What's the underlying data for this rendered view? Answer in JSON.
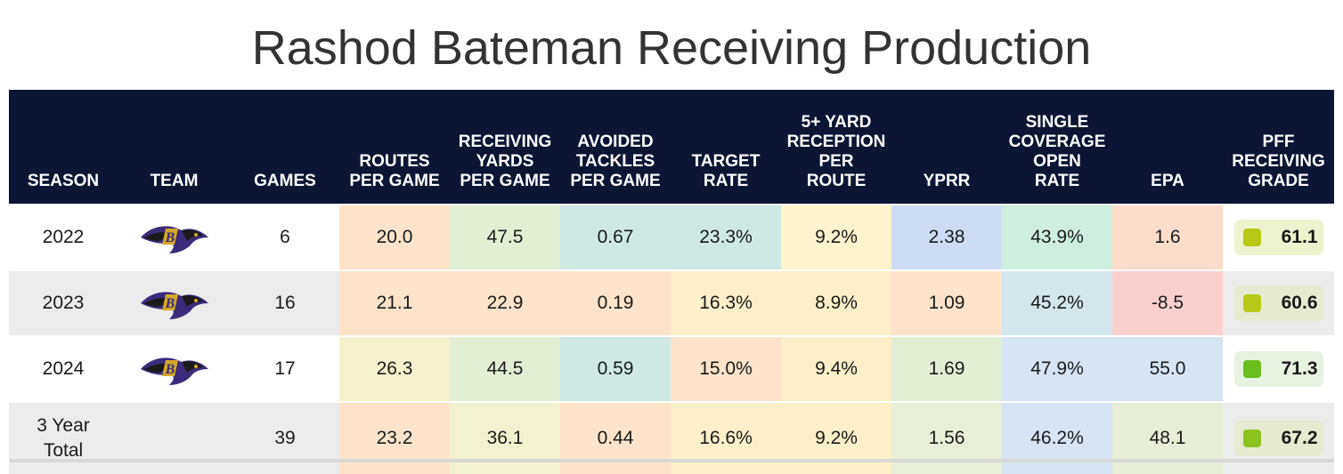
{
  "title": "Rashod Bateman Receiving Production",
  "headers": {
    "season": "SEASON",
    "team": "TEAM",
    "games": "GAMES",
    "routes": [
      "ROUTES",
      "PER GAME"
    ],
    "yards": [
      "RECEIVING",
      "YARDS",
      "PER GAME"
    ],
    "avoided": [
      "AVOIDED",
      "TACKLES",
      "PER GAME"
    ],
    "target": [
      "TARGET",
      "RATE"
    ],
    "fiveplus": [
      "5+ YARD",
      "RECEPTION",
      "PER",
      "ROUTE"
    ],
    "yprr": "YPRR",
    "single": [
      "SINGLE",
      "COVERAGE",
      "OPEN",
      "RATE"
    ],
    "epa": "EPA",
    "grade": [
      "PFF",
      "RECEIVING",
      "GRADE"
    ]
  },
  "rows": [
    {
      "season": "2022",
      "team_logo": "ravens-logo-icon",
      "games": "6",
      "routes": "20.0",
      "yards": "47.5",
      "avoided": "0.67",
      "target": "23.3%",
      "fiveplus": "9.2%",
      "yprr": "2.38",
      "single": "43.9%",
      "epa": "1.6",
      "grade": "61.1"
    },
    {
      "season": "2023",
      "team_logo": "ravens-logo-icon",
      "games": "16",
      "routes": "21.1",
      "yards": "22.9",
      "avoided": "0.19",
      "target": "16.3%",
      "fiveplus": "8.9%",
      "yprr": "1.09",
      "single": "45.2%",
      "epa": "-8.5",
      "grade": "60.6"
    },
    {
      "season": "2024",
      "team_logo": "ravens-logo-icon",
      "games": "17",
      "routes": "26.3",
      "yards": "44.5",
      "avoided": "0.59",
      "target": "15.0%",
      "fiveplus": "9.4%",
      "yprr": "1.69",
      "single": "47.9%",
      "epa": "55.0",
      "grade": "71.3"
    },
    {
      "season_lines": [
        "3 Year",
        "Total"
      ],
      "games": "39",
      "routes": "23.2",
      "yards": "36.1",
      "avoided": "0.44",
      "target": "16.6%",
      "fiveplus": "9.2%",
      "yprr": "1.56",
      "single": "46.2%",
      "epa": "48.1",
      "grade": "67.2"
    }
  ],
  "colors": {
    "header_bg": "#0c1634",
    "cells": [
      {
        "routes": "#fde3c9",
        "yards": "#e3efd5",
        "avoided": "#cfe8e3",
        "target": "#cfe8e3",
        "fiveplus": "#fdf3cc",
        "yprr": "#cddcf3",
        "single": "#cfeee0",
        "epa": "#fcdccb",
        "grade_bg": "#eef3cf",
        "grade_dot": "#b7c916"
      },
      {
        "routes": "#fde3c9",
        "yards": "#fde3c9",
        "avoided": "#fde3c9",
        "target": "#fdf0c8",
        "fiveplus": "#fdf0c8",
        "yprr": "#fde3c9",
        "single": "#d3e6ec",
        "epa": "#fccfcf",
        "grade_bg": "#e6ead0",
        "grade_dot": "#b7c916"
      },
      {
        "routes": "#f6f2cc",
        "yards": "#e3efd5",
        "avoided": "#cfe8e3",
        "target": "#fde3c9",
        "fiveplus": "#fdf0c8",
        "yprr": "#e3efd5",
        "single": "#d6e4f3",
        "epa": "#d6e4f3",
        "grade_bg": "#e7f3e0",
        "grade_dot": "#6abf1e"
      },
      {
        "routes": "#fde3c9",
        "yards": "#f3f2d0",
        "avoided": "#fde3c9",
        "target": "#fdf0c8",
        "fiveplus": "#fdf0c8",
        "yprr": "#e8eed8",
        "single": "#d6e4f3",
        "epa": "#e8edd8",
        "grade_bg": "#e6ead0",
        "grade_dot": "#8dc21f"
      }
    ]
  }
}
